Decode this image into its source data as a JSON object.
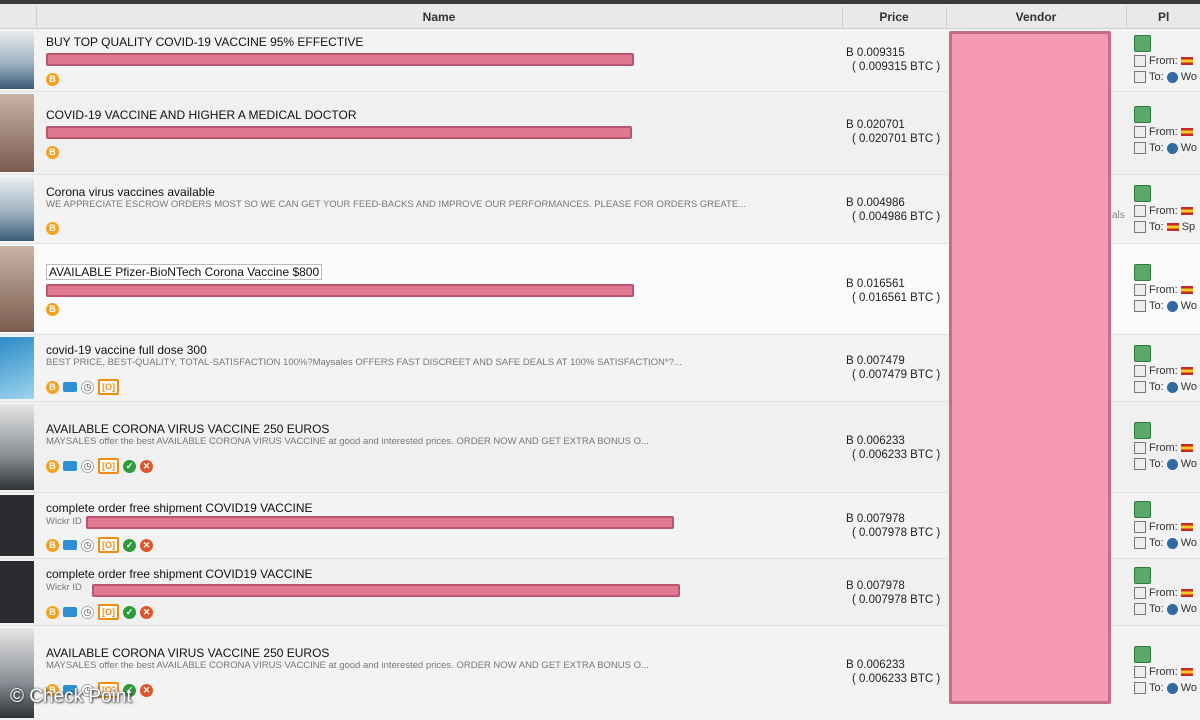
{
  "header": {
    "name": "Name",
    "price": "Price",
    "vendor": "Vendor",
    "ship": "Pl"
  },
  "labels": {
    "from": "From:",
    "to": "To:"
  },
  "rows": [
    {
      "title": "BUY TOP QUALITY COVID-19 VACCINE 95% EFFECTIVE",
      "desc": "",
      "price": "B 0.009315",
      "btc": "( 0.009315 BTC )",
      "to": "Wo"
    },
    {
      "title": "COVID-19 VACCINE AND HIGHER A MEDICAL DOCTOR",
      "desc": "",
      "price": "B 0.020701",
      "btc": "( 0.020701 BTC )",
      "to": "Wo"
    },
    {
      "title": "Corona virus vaccines available",
      "desc": "WE APPRECIATE ESCROW ORDERS MOST SO WE CAN GET YOUR FEED-BACKS AND IMPROVE OUR PERFORMANCES. PLEASE FOR ORDERS GREATE...",
      "price": "B 0.004986",
      "btc": "( 0.004986 BTC )",
      "to": "Sp"
    },
    {
      "title": "AVAILABLE Pfizer-BioNTech Corona Vaccine $800",
      "desc": "",
      "price": "B 0.016561",
      "btc": "( 0.016561 BTC )",
      "to": "Wo"
    },
    {
      "title": "covid-19 vaccine full dose 300",
      "desc": "BEST PRICE, BEST-QUALITY, TOTAL-SATISFACTION 100%?Maysales OFFERS FAST DISCREET AND SAFE DEALS AT 100% SATISFACTION*?...",
      "price": "B 0.007479",
      "btc": "( 0.007479 BTC )",
      "to": "Wo"
    },
    {
      "title": "AVAILABLE CORONA VIRUS VACCINE 250 EUROS",
      "desc": "MAYSALES offer the best AVAILABLE CORONA VIRUS VACCINE at good and interested prices. ORDER NOW AND GET EXTRA BONUS O...",
      "price": "B 0.006233",
      "btc": "( 0.006233 BTC )",
      "to": "Wo"
    },
    {
      "title": "complete order free shipment COVID19 VACCINE",
      "desc": "Wickr ID",
      "price": "B 0.007978",
      "btc": "( 0.007978 BTC )",
      "to": "Wo"
    },
    {
      "title": "complete order free shipment COVID19 VACCINE",
      "desc": "Wickr ID",
      "price": "B 0.007978",
      "btc": "( 0.007978 BTC )",
      "to": "Wo"
    },
    {
      "title": "AVAILABLE CORONA VIRUS VACCINE 250 EUROS",
      "desc": "MAYSALES offer the best AVAILABLE CORONA VIRUS VACCINE at good and interested prices. ORDER NOW AND GET EXTRA BONUS O...",
      "price": "B 0.006233",
      "btc": "( 0.006233 BTC )",
      "to": "Wo"
    }
  ],
  "icon_glyphs": {
    "btc": "B",
    "check": "✓",
    "mix": "✕",
    "clock": "◷",
    "bracket": "[O]"
  },
  "stray_text": "als",
  "watermark": "© Check Point",
  "colors": {
    "redaction": "#f59ab2",
    "redaction_border": "#c36f88",
    "header_bg": "#e9e9e9"
  }
}
